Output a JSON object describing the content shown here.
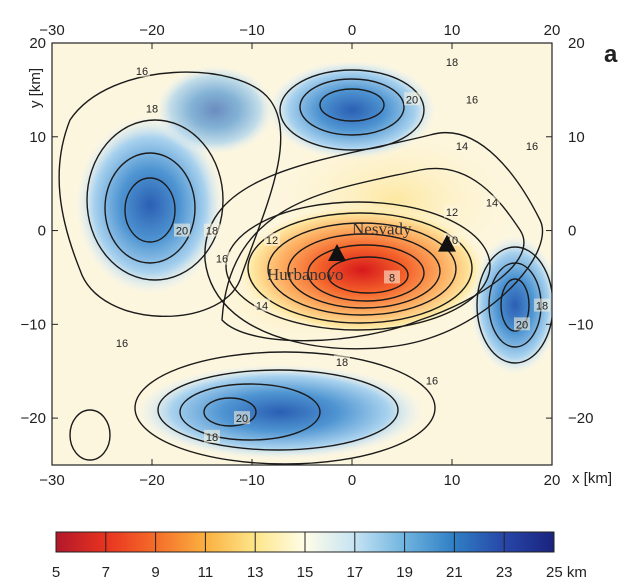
{
  "panel_label": "a",
  "x_axis": {
    "ticks": [
      "−30",
      "−20",
      "−10",
      "0",
      "10",
      "20"
    ],
    "title": "x [km]"
  },
  "y_axis": {
    "ticks": [
      "20",
      "10",
      "0",
      "−10",
      "−20"
    ],
    "title": "y [km]"
  },
  "top_ticks": [
    "−30",
    "−20",
    "−10",
    "0",
    "10",
    "20"
  ],
  "right_ticks": [
    "20",
    "10",
    "0",
    "−10",
    "−20"
  ],
  "colorbar": {
    "ticks": [
      "5",
      "7",
      "9",
      "11",
      "13",
      "15",
      "17",
      "19",
      "21",
      "23",
      "25 km"
    ],
    "range": [
      5,
      25
    ],
    "colors": [
      "#b2182b",
      "#e8331f",
      "#f46d2a",
      "#fbb040",
      "#fde68a",
      "#fffde8",
      "#c6e3f3",
      "#6fb4e0",
      "#2f7ec4",
      "#2747a8",
      "#1a237e"
    ]
  },
  "stations": [
    {
      "name": "Hurbanovo",
      "label": "Hurbanovo",
      "x": -1.5,
      "y": -2.5
    },
    {
      "name": "Nesvady",
      "label": "Nesvady",
      "x": 9.5,
      "y": -1.5
    }
  ],
  "contour_labels": [
    {
      "text": "16",
      "x": -21,
      "y": 17
    },
    {
      "text": "18",
      "x": -20,
      "y": 13
    },
    {
      "text": "18",
      "x": 10,
      "y": 18
    },
    {
      "text": "20",
      "x": 6,
      "y": 14
    },
    {
      "text": "16",
      "x": 12,
      "y": 14
    },
    {
      "text": "16",
      "x": 18,
      "y": 9
    },
    {
      "text": "14",
      "x": 11,
      "y": 9
    },
    {
      "text": "14",
      "x": 14,
      "y": 3
    },
    {
      "text": "12",
      "x": 10,
      "y": 2
    },
    {
      "text": "20",
      "x": -17,
      "y": 0
    },
    {
      "text": "18",
      "x": -14,
      "y": 0
    },
    {
      "text": "16",
      "x": -13,
      "y": -3
    },
    {
      "text": "12",
      "x": -8,
      "y": -1
    },
    {
      "text": "10",
      "x": 10,
      "y": -1
    },
    {
      "text": "8",
      "x": 4,
      "y": -5
    },
    {
      "text": "14",
      "x": -9,
      "y": -8
    },
    {
      "text": "18",
      "x": 19,
      "y": -8
    },
    {
      "text": "20",
      "x": 17,
      "y": -10
    },
    {
      "text": "16",
      "x": -23,
      "y": -12
    },
    {
      "text": "18",
      "x": -1,
      "y": -14
    },
    {
      "text": "16",
      "x": 8,
      "y": -16
    },
    {
      "text": "20",
      "x": -11,
      "y": -20
    },
    {
      "text": "18",
      "x": -14,
      "y": -22
    }
  ]
}
